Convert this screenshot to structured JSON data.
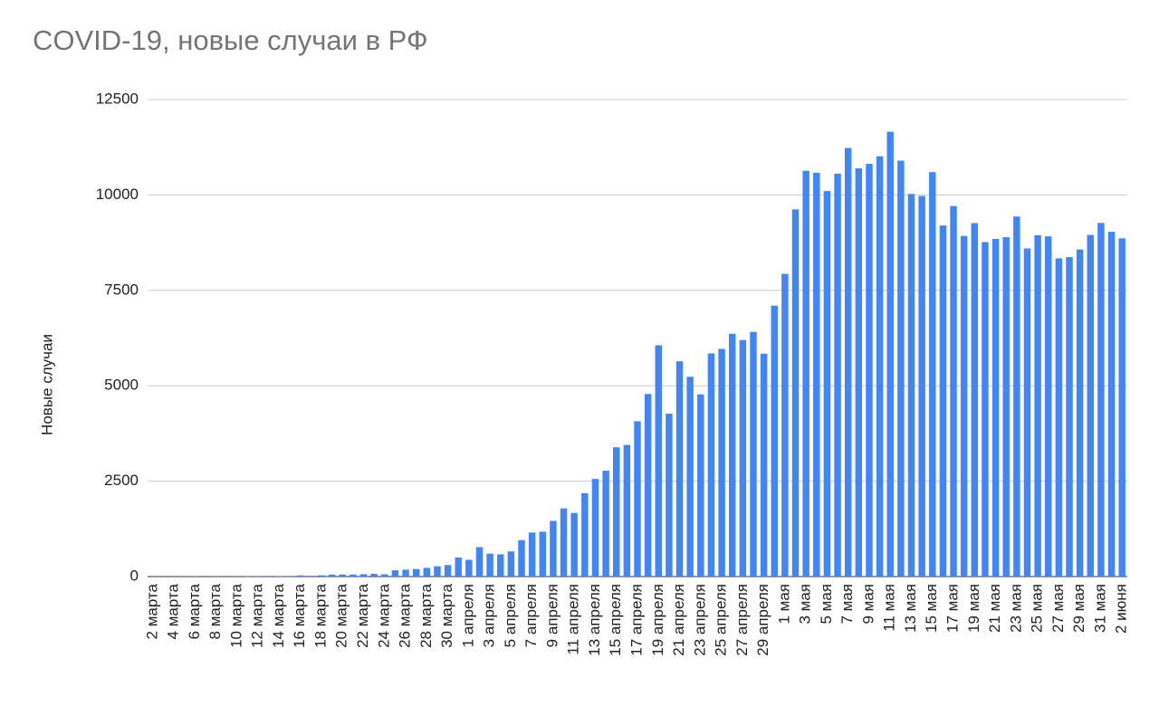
{
  "chart_data": {
    "type": "bar",
    "title": "COVID-19, новые случаи в РФ",
    "y_label": "Новые случаи",
    "categories": [
      "2 марта",
      null,
      "4 марта",
      null,
      "6 марта",
      null,
      "8 марта",
      null,
      "10 марта",
      null,
      "12 марта",
      null,
      "14 марта",
      null,
      "16 марта",
      null,
      "18 марта",
      null,
      "20 марта",
      null,
      "22 марта",
      null,
      "24 марта",
      null,
      "26 марта",
      null,
      "28 марта",
      null,
      "30 марта",
      null,
      "1 апреля",
      null,
      "3 апреля",
      null,
      "5 апреля",
      null,
      "7 апреля",
      null,
      "9 апреля",
      null,
      "11 апреля",
      null,
      "13 апреля",
      null,
      "15 апреля",
      null,
      "17 апреля",
      null,
      "19 апреля",
      null,
      "21 апреля",
      null,
      "23 апреля",
      null,
      "25 апреля",
      null,
      "27 апреля",
      null,
      "29 апреля",
      null,
      "1 мая",
      null,
      "3 мая",
      null,
      "5 мая",
      null,
      "7 мая",
      null,
      "9 мая",
      null,
      "11 мая",
      null,
      "13 мая",
      null,
      "15 мая",
      null,
      "17 мая",
      null,
      "19 мая",
      null,
      "21 мая",
      null,
      "23 мая",
      null,
      "25 мая",
      null,
      "27 мая",
      null,
      "29 мая",
      null,
      "31 мая",
      null,
      "2 июня"
    ],
    "values": [
      1,
      0,
      0,
      1,
      6,
      0,
      3,
      0,
      3,
      8,
      6,
      17,
      14,
      4,
      30,
      21,
      33,
      52,
      54,
      53,
      61,
      71,
      57,
      163,
      182,
      196,
      228,
      270,
      302,
      501,
      440,
      771,
      601,
      582,
      658,
      954,
      1154,
      1175,
      1459,
      1786,
      1667,
      2186,
      2558,
      2774,
      3388,
      3448,
      4070,
      4785,
      6060,
      4268,
      5642,
      5236,
      4774,
      5849,
      5966,
      6361,
      6198,
      6411,
      5841,
      7099,
      7933,
      9623,
      10633,
      10581,
      10102,
      10559,
      11231,
      10699,
      10817,
      11012,
      11656,
      10899,
      10028,
      9974,
      10598,
      9200,
      9709,
      8926,
      9263,
      8764,
      8849,
      8894,
      9434,
      8599,
      8946,
      8915,
      8338,
      8371,
      8572,
      8952,
      9268,
      9035,
      8863
    ],
    "color": "#4285f4",
    "ylim": [
      0,
      12500
    ],
    "yticks": [
      0,
      2500,
      5000,
      7500,
      10000,
      12500
    ],
    "grid": true
  }
}
